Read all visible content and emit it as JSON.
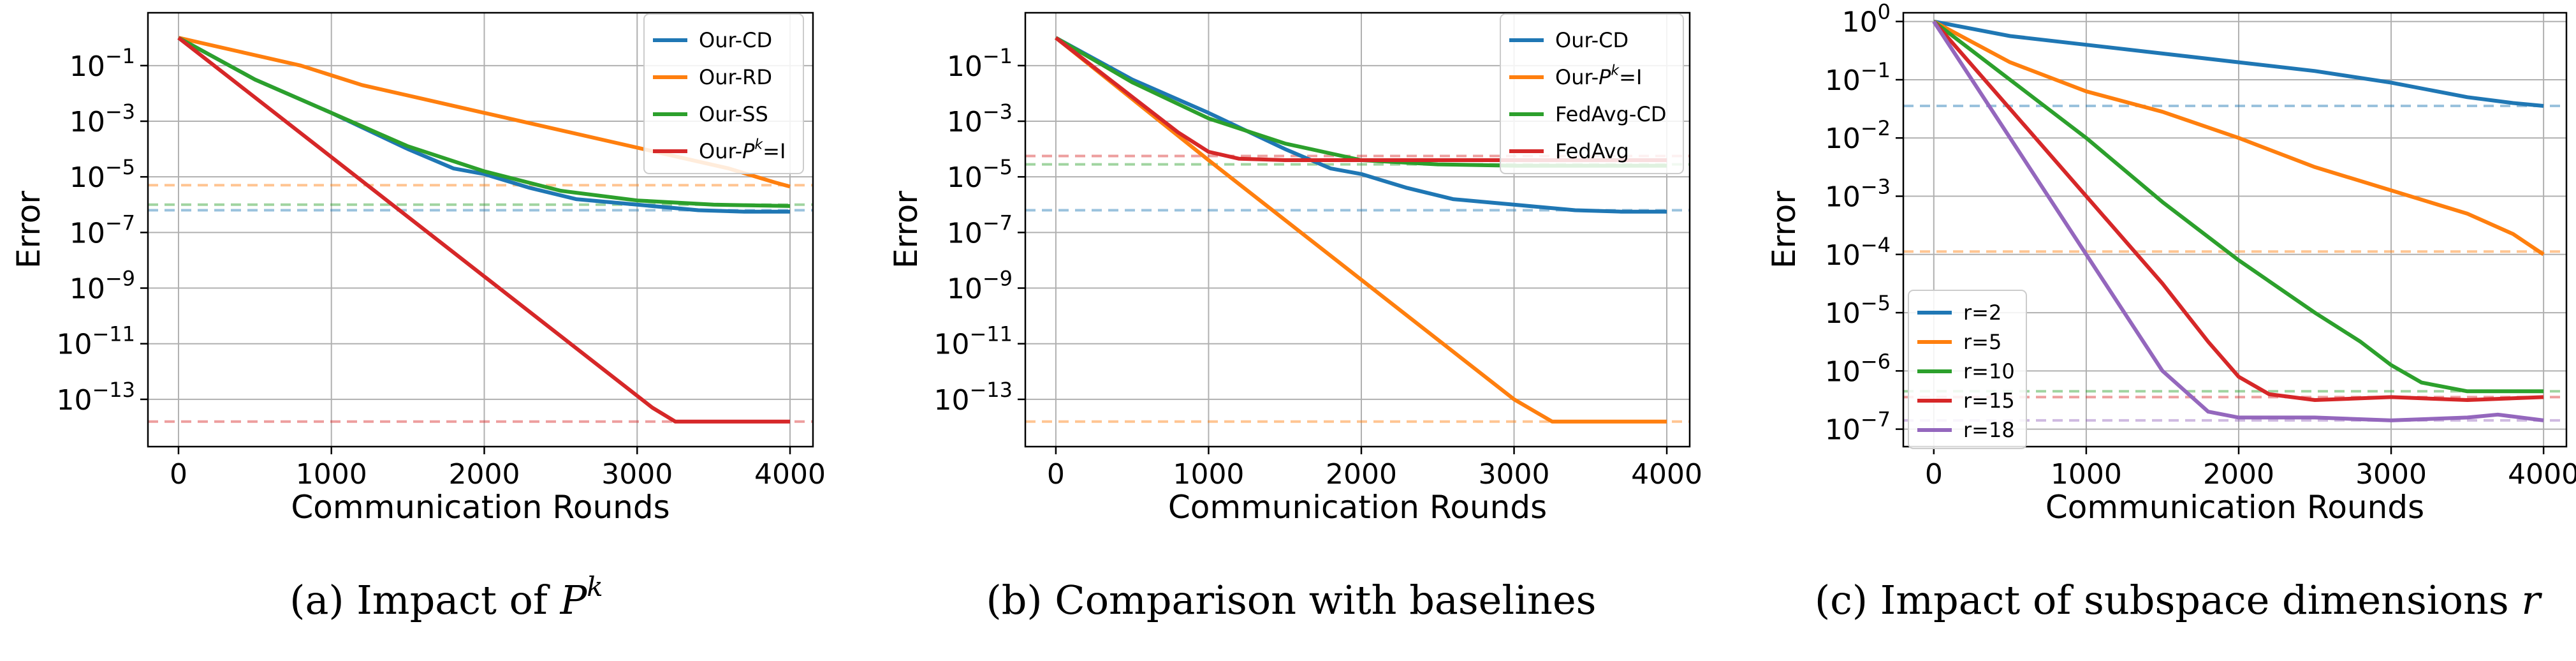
{
  "chart_data": [
    {
      "type": "line",
      "caption": "(a) Impact of P^k",
      "caption_parts": {
        "text": "(a) Impact of ",
        "math": "P",
        "sup": "k"
      },
      "xlabel": "Communication Rounds",
      "ylabel": "Error",
      "xlim": [
        -200,
        4150
      ],
      "ylim_log10": [
        -14.7,
        0.9
      ],
      "yscale": "log",
      "grid": true,
      "legend_position": "upper right",
      "x_ticks": [
        0,
        1000,
        2000,
        3000,
        4000
      ],
      "y_ticks": [
        {
          "exp": -1,
          "base": "10",
          "sup": "−1"
        },
        {
          "exp": -3,
          "base": "10",
          "sup": "−3"
        },
        {
          "exp": -5,
          "base": "10",
          "sup": "−5"
        },
        {
          "exp": -7,
          "base": "10",
          "sup": "−7"
        },
        {
          "exp": -9,
          "base": "10",
          "sup": "−9"
        },
        {
          "exp": -11,
          "base": "10",
          "sup": "−11"
        },
        {
          "exp": -13,
          "base": "10",
          "sup": "−13"
        }
      ],
      "series": [
        {
          "name": "Our-CD",
          "label_html": {
            "text": "Our-CD"
          },
          "color": "#1f77b4",
          "hline": -6.2,
          "points": [
            [
              0,
              0.0
            ],
            [
              500,
              -1.5
            ],
            [
              1000,
              -2.7
            ],
            [
              1500,
              -4.0
            ],
            [
              1800,
              -4.7
            ],
            [
              2000,
              -4.9
            ],
            [
              2300,
              -5.4
            ],
            [
              2600,
              -5.8
            ],
            [
              3000,
              -6.0
            ],
            [
              3400,
              -6.2
            ],
            [
              3700,
              -6.25
            ],
            [
              4000,
              -6.25
            ]
          ]
        },
        {
          "name": "Our-RD",
          "label_html": {
            "text": "Our-RD"
          },
          "color": "#ff7f0e",
          "hline": -5.3,
          "points": [
            [
              0,
              0.0
            ],
            [
              400,
              -0.5
            ],
            [
              800,
              -1.0
            ],
            [
              1200,
              -1.7
            ],
            [
              1600,
              -2.2
            ],
            [
              2000,
              -2.7
            ],
            [
              2400,
              -3.2
            ],
            [
              2800,
              -3.7
            ],
            [
              3200,
              -4.2
            ],
            [
              3600,
              -4.7
            ],
            [
              3900,
              -5.2
            ],
            [
              4000,
              -5.35
            ]
          ]
        },
        {
          "name": "Our-SS",
          "label_html": {
            "text": "Our-SS"
          },
          "color": "#2ca02c",
          "hline": -6.0,
          "points": [
            [
              0,
              0.0
            ],
            [
              500,
              -1.5
            ],
            [
              1000,
              -2.7
            ],
            [
              1500,
              -3.9
            ],
            [
              2000,
              -4.8
            ],
            [
              2500,
              -5.5
            ],
            [
              3000,
              -5.85
            ],
            [
              3500,
              -6.0
            ],
            [
              4000,
              -6.05
            ]
          ]
        },
        {
          "name": "Our-P^k=I",
          "label_html": {
            "text": "Our-",
            "math": "P",
            "sup": "k",
            "after": "=I"
          },
          "color": "#d62728",
          "hline": -13.8,
          "points": [
            [
              0,
              0.0
            ],
            [
              3100,
              -13.3
            ],
            [
              3250,
              -13.8
            ],
            [
              4000,
              -13.8
            ]
          ]
        }
      ]
    },
    {
      "type": "line",
      "caption": "(b) Comparison with baselines",
      "caption_parts": {
        "text": "(b) Comparison with baselines"
      },
      "xlabel": "Communication Rounds",
      "ylabel": "Error",
      "xlim": [
        -200,
        4150
      ],
      "ylim_log10": [
        -14.7,
        0.9
      ],
      "yscale": "log",
      "grid": true,
      "legend_position": "upper right",
      "x_ticks": [
        0,
        1000,
        2000,
        3000,
        4000
      ],
      "y_ticks": [
        {
          "exp": -1,
          "base": "10",
          "sup": "−1"
        },
        {
          "exp": -3,
          "base": "10",
          "sup": "−3"
        },
        {
          "exp": -5,
          "base": "10",
          "sup": "−5"
        },
        {
          "exp": -7,
          "base": "10",
          "sup": "−7"
        },
        {
          "exp": -9,
          "base": "10",
          "sup": "−9"
        },
        {
          "exp": -11,
          "base": "10",
          "sup": "−11"
        },
        {
          "exp": -13,
          "base": "10",
          "sup": "−13"
        }
      ],
      "series": [
        {
          "name": "Our-CD",
          "label_html": {
            "text": "Our-CD"
          },
          "color": "#1f77b4",
          "hline": -6.2,
          "points": [
            [
              0,
              0.0
            ],
            [
              500,
              -1.5
            ],
            [
              1000,
              -2.7
            ],
            [
              1500,
              -4.0
            ],
            [
              1800,
              -4.7
            ],
            [
              2000,
              -4.9
            ],
            [
              2300,
              -5.4
            ],
            [
              2600,
              -5.8
            ],
            [
              3000,
              -6.0
            ],
            [
              3400,
              -6.2
            ],
            [
              3700,
              -6.25
            ],
            [
              4000,
              -6.25
            ]
          ]
        },
        {
          "name": "Our-P^k=I",
          "label_html": {
            "text": "Our-",
            "math": "P",
            "sup": "k",
            "after": "=I"
          },
          "color": "#ff7f0e",
          "hline": -13.8,
          "points": [
            [
              0,
              0.0
            ],
            [
              1000,
              -4.4
            ],
            [
              2000,
              -8.7
            ],
            [
              3000,
              -13.0
            ],
            [
              3250,
              -13.8
            ],
            [
              4000,
              -13.8
            ]
          ]
        },
        {
          "name": "FedAvg-CD",
          "label_html": {
            "text": "FedAvg-CD"
          },
          "color": "#2ca02c",
          "hline": -4.55,
          "points": [
            [
              0,
              0.0
            ],
            [
              500,
              -1.6
            ],
            [
              1000,
              -2.9
            ],
            [
              1500,
              -3.8
            ],
            [
              2000,
              -4.4
            ],
            [
              2500,
              -4.55
            ],
            [
              3000,
              -4.6
            ],
            [
              4000,
              -4.6
            ]
          ]
        },
        {
          "name": "FedAvg",
          "label_html": {
            "text": "FedAvg"
          },
          "color": "#d62728",
          "hline": -4.25,
          "points": [
            [
              0,
              0.0
            ],
            [
              400,
              -1.7
            ],
            [
              800,
              -3.4
            ],
            [
              1000,
              -4.1
            ],
            [
              1200,
              -4.35
            ],
            [
              1500,
              -4.4
            ],
            [
              4000,
              -4.4
            ]
          ]
        }
      ]
    },
    {
      "type": "line",
      "caption": "(c) Impact of subspace dimensions r",
      "caption_parts": {
        "text": "(c) Impact of subspace dimensions ",
        "math": "r"
      },
      "xlabel": "Communication Rounds",
      "ylabel": "Error",
      "xlim": [
        -200,
        4150
      ],
      "ylim_log10": [
        -7.3,
        0.15
      ],
      "yscale": "log",
      "grid": true,
      "legend_position": "lower left",
      "x_ticks": [
        0,
        1000,
        2000,
        3000,
        4000
      ],
      "y_ticks": [
        {
          "exp": 0,
          "base": "10",
          "sup": "0"
        },
        {
          "exp": -1,
          "base": "10",
          "sup": "−1"
        },
        {
          "exp": -2,
          "base": "10",
          "sup": "−2"
        },
        {
          "exp": -3,
          "base": "10",
          "sup": "−3"
        },
        {
          "exp": -4,
          "base": "10",
          "sup": "−4"
        },
        {
          "exp": -5,
          "base": "10",
          "sup": "−5"
        },
        {
          "exp": -6,
          "base": "10",
          "sup": "−6"
        },
        {
          "exp": -7,
          "base": "10",
          "sup": "−7"
        }
      ],
      "series": [
        {
          "name": "r=2",
          "label_html": {
            "text": "r=2"
          },
          "color": "#1f77b4",
          "hline": -1.45,
          "points": [
            [
              0,
              0.0
            ],
            [
              500,
              -0.25
            ],
            [
              1000,
              -0.4
            ],
            [
              1500,
              -0.55
            ],
            [
              2000,
              -0.7
            ],
            [
              2500,
              -0.85
            ],
            [
              3000,
              -1.05
            ],
            [
              3500,
              -1.3
            ],
            [
              3800,
              -1.4
            ],
            [
              4000,
              -1.45
            ]
          ]
        },
        {
          "name": "r=5",
          "label_html": {
            "text": "r=5"
          },
          "color": "#ff7f0e",
          "hline": -3.95,
          "points": [
            [
              0,
              0.0
            ],
            [
              500,
              -0.7
            ],
            [
              1000,
              -1.2
            ],
            [
              1500,
              -1.55
            ],
            [
              2000,
              -2.0
            ],
            [
              2500,
              -2.5
            ],
            [
              3000,
              -2.9
            ],
            [
              3500,
              -3.3
            ],
            [
              3800,
              -3.65
            ],
            [
              4000,
              -4.0
            ]
          ]
        },
        {
          "name": "r=10",
          "label_html": {
            "text": "r=10"
          },
          "color": "#2ca02c",
          "hline": -6.35,
          "points": [
            [
              0,
              0.0
            ],
            [
              500,
              -1.0
            ],
            [
              1000,
              -2.0
            ],
            [
              1500,
              -3.1
            ],
            [
              2000,
              -4.1
            ],
            [
              2500,
              -5.0
            ],
            [
              2800,
              -5.5
            ],
            [
              3000,
              -5.9
            ],
            [
              3200,
              -6.2
            ],
            [
              3500,
              -6.35
            ],
            [
              4000,
              -6.35
            ]
          ]
        },
        {
          "name": "r=15",
          "label_html": {
            "text": "r=15"
          },
          "color": "#d62728",
          "hline": -6.45,
          "points": [
            [
              0,
              0.0
            ],
            [
              500,
              -1.5
            ],
            [
              1000,
              -3.0
            ],
            [
              1500,
              -4.5
            ],
            [
              1800,
              -5.5
            ],
            [
              2000,
              -6.1
            ],
            [
              2200,
              -6.4
            ],
            [
              2500,
              -6.5
            ],
            [
              3000,
              -6.45
            ],
            [
              3500,
              -6.5
            ],
            [
              4000,
              -6.45
            ]
          ]
        },
        {
          "name": "r=18",
          "label_html": {
            "text": "r=18"
          },
          "color": "#9467bd",
          "hline": -6.85,
          "points": [
            [
              0,
              0.0
            ],
            [
              500,
              -2.0
            ],
            [
              1000,
              -4.0
            ],
            [
              1500,
              -6.0
            ],
            [
              1800,
              -6.7
            ],
            [
              2000,
              -6.8
            ],
            [
              2500,
              -6.8
            ],
            [
              3000,
              -6.85
            ],
            [
              3500,
              -6.8
            ],
            [
              3700,
              -6.75
            ],
            [
              4000,
              -6.85
            ]
          ]
        }
      ]
    }
  ]
}
